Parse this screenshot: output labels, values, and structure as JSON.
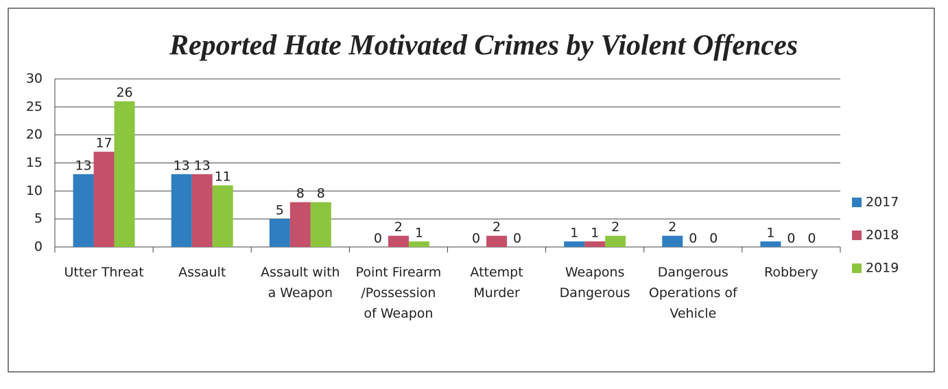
{
  "chart_data": {
    "type": "bar",
    "title": "Reported Hate Motivated Crimes by Violent Offences",
    "categories": [
      "Utter Threat",
      "Assault",
      "Assault with a Weapon",
      "Point Firearm /Possession of Weapon",
      "Attempt Murder",
      "Weapons Dangerous",
      "Dangerous Operations of Vehicle",
      "Robbery"
    ],
    "series": [
      {
        "name": "2017",
        "color": "#2f7ec1",
        "values": [
          13,
          13,
          5,
          0,
          0,
          1,
          2,
          1
        ]
      },
      {
        "name": "2018",
        "color": "#c4506a",
        "values": [
          17,
          13,
          8,
          2,
          2,
          1,
          0,
          0
        ]
      },
      {
        "name": "2019",
        "color": "#8cc63f",
        "values": [
          26,
          11,
          8,
          1,
          0,
          2,
          0,
          0
        ]
      }
    ],
    "ylim": [
      0,
      30
    ],
    "yticks": [
      0,
      5,
      10,
      15,
      20,
      25,
      30
    ],
    "grid": true,
    "legend": "right"
  }
}
